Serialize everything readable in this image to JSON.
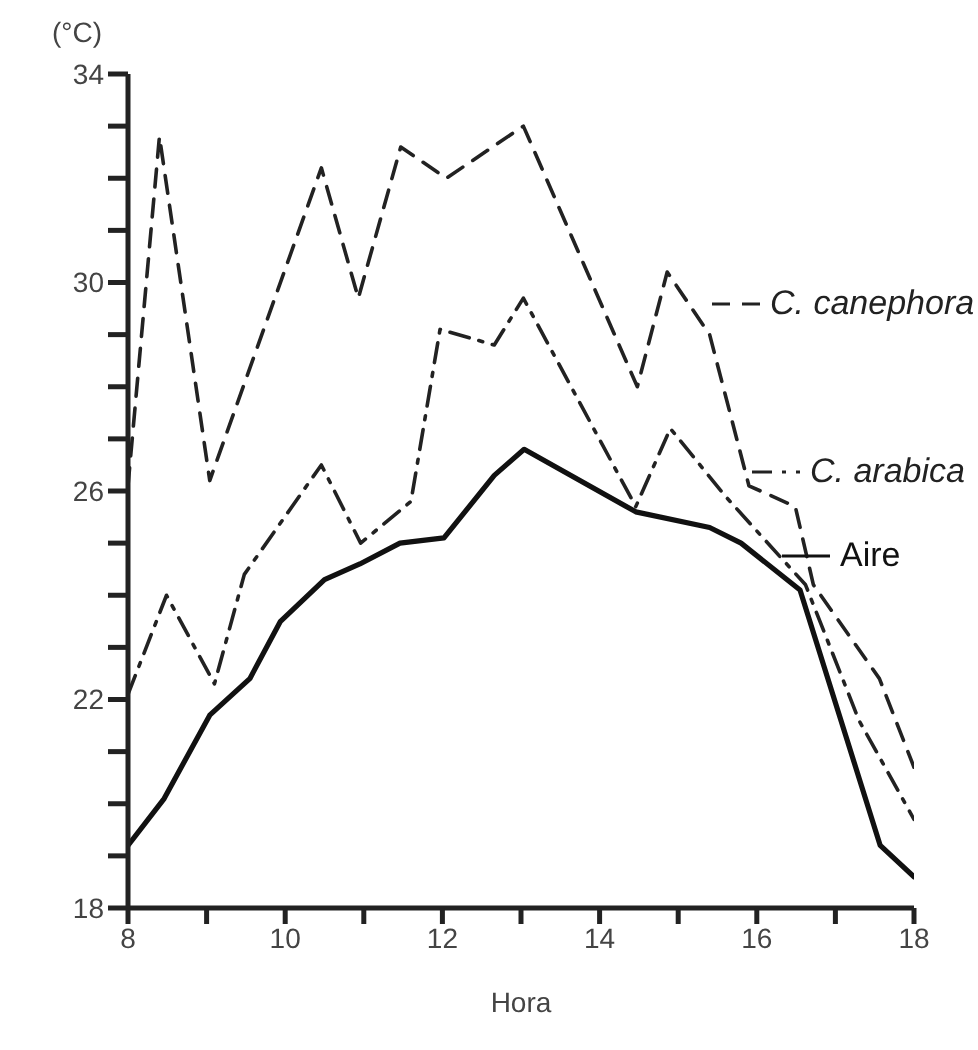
{
  "chart_data": {
    "type": "line",
    "xlabel": "Hora",
    "ylabel": "(°C)",
    "xlim": [
      8,
      18
    ],
    "xticks": [
      8,
      {
        "value": 9,
        "label": null
      },
      10,
      {
        "value": 11,
        "label": null
      },
      12,
      {
        "value": 13,
        "label": null
      },
      14,
      {
        "value": 15,
        "label": null
      },
      16,
      {
        "value": 17,
        "label": null
      },
      18
    ],
    "ylim": [
      18,
      34
    ],
    "yticks": [
      18,
      {
        "value": 19,
        "label": null
      },
      {
        "value": 20,
        "label": null
      },
      {
        "value": 21,
        "label": null
      },
      22,
      {
        "value": 23,
        "label": null
      },
      {
        "value": 24,
        "label": null
      },
      {
        "value": 25,
        "label": null
      },
      26,
      {
        "value": 27,
        "label": null
      },
      {
        "value": 28,
        "label": null
      },
      {
        "value": 29,
        "label": null
      },
      30,
      {
        "value": 31,
        "label": null
      },
      {
        "value": 32,
        "label": null
      },
      {
        "value": 33,
        "label": null
      },
      34
    ],
    "grid": false,
    "legend": "right",
    "marker": "none",
    "series": [
      {
        "name": "C. canephora",
        "color": "#222222",
        "line_style": "dashed",
        "x": [
          8,
          8.4,
          9.04,
          10.46,
          10.93,
          11.47,
          12.05,
          13.03,
          14.48,
          14.86,
          15.4,
          15.9,
          16.49,
          16.72,
          17.56,
          18
        ],
        "values": [
          26.1,
          32.8,
          26.2,
          32.2,
          29.7,
          32.6,
          32.0,
          33.0,
          28.0,
          30.2,
          29.0,
          26.1,
          25.7,
          24.2,
          22.4,
          20.7
        ]
      },
      {
        "name": "C. arabica",
        "color": "#222222",
        "line_style": "dashdot",
        "x": [
          8,
          8.49,
          9.1,
          9.48,
          10.46,
          10.96,
          11.6,
          11.97,
          12.66,
          13.03,
          14.46,
          14.9,
          15.6,
          16.62,
          17.3,
          18
        ],
        "values": [
          22.1,
          24.0,
          22.3,
          24.4,
          26.5,
          25.0,
          25.8,
          29.1,
          28.8,
          29.7,
          25.7,
          27.2,
          25.9,
          24.2,
          21.6,
          19.7
        ]
      },
      {
        "name": "Aire",
        "color": "#111111",
        "line_style": "solid",
        "x": [
          8,
          8.46,
          9.04,
          9.55,
          9.94,
          10.5,
          10.95,
          11.46,
          12.02,
          12.66,
          13.04,
          14.46,
          15.4,
          15.8,
          16.55,
          17.57,
          18
        ],
        "values": [
          19.2,
          20.1,
          21.7,
          22.4,
          23.5,
          24.3,
          24.6,
          25.0,
          25.1,
          26.3,
          26.8,
          25.6,
          25.3,
          25.0,
          24.1,
          19.2,
          18.6
        ]
      }
    ]
  }
}
